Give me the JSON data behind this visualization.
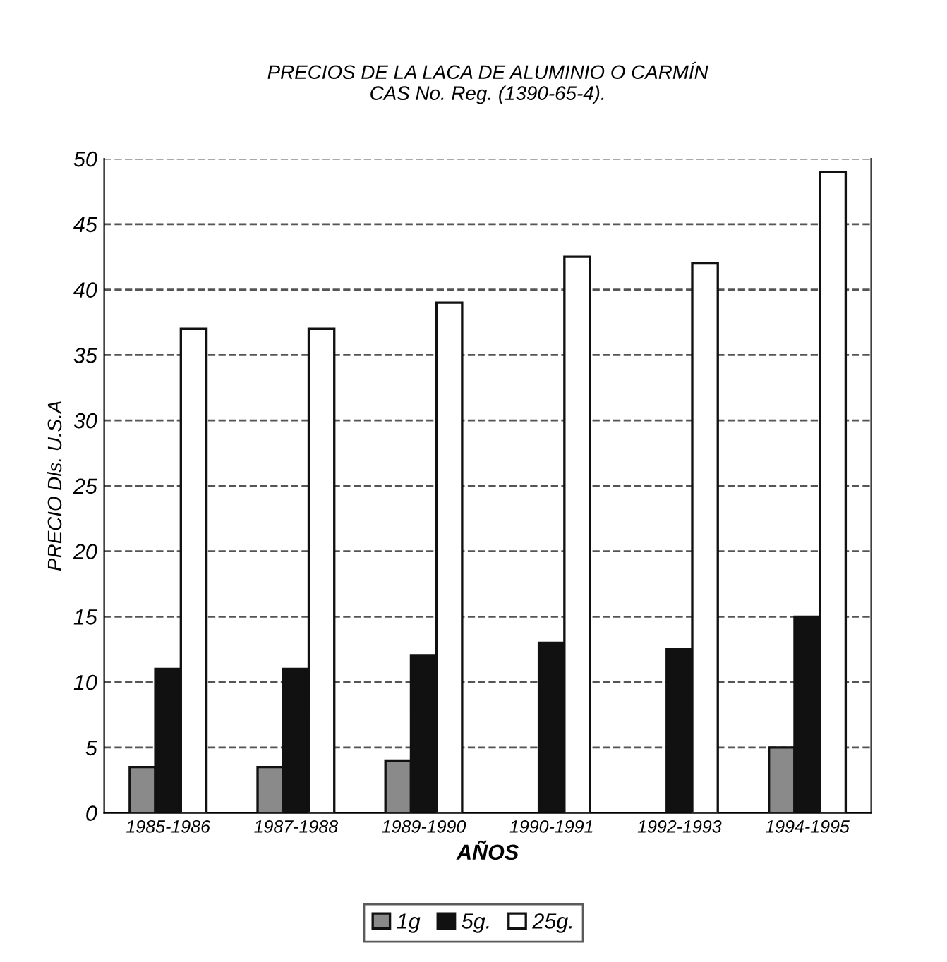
{
  "chart_data": {
    "type": "bar",
    "title": "PRECIOS DE LA LACA DE ALUMINIO O CARMÍN\nCAS No. Reg. (1390-65-4).",
    "xlabel": "AÑOS",
    "ylabel": "PRECIO Dls. U.S.A",
    "categories": [
      "1985-1986",
      "1987-1988",
      "1989-1990",
      "1990-1991",
      "1992-1993",
      "1994-1995"
    ],
    "series": [
      {
        "name": "1g",
        "color": "#8a8a8a",
        "values": [
          3.5,
          3.5,
          4,
          null,
          null,
          5
        ]
      },
      {
        "name": "5g.",
        "color": "#111111",
        "values": [
          11,
          11,
          12,
          13,
          12.5,
          15
        ]
      },
      {
        "name": "25g.",
        "color": "#ffffff",
        "values": [
          37,
          37,
          39,
          42.5,
          42,
          49
        ]
      }
    ],
    "ylim": [
      0,
      50
    ],
    "yticks": [
      0,
      5,
      10,
      15,
      20,
      25,
      30,
      35,
      40,
      45,
      50
    ],
    "grid": "y",
    "legend": "bottom"
  }
}
